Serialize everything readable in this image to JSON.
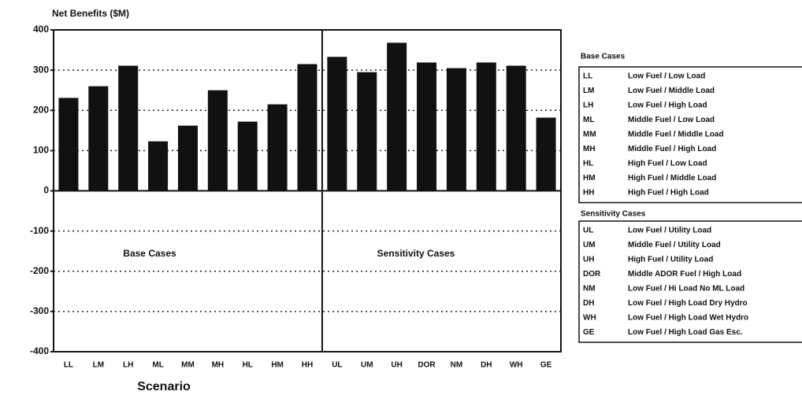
{
  "chart_data": {
    "type": "bar",
    "title": "Net Benefits ($M)",
    "x_label": "Scenario",
    "categories": [
      "LL",
      "LM",
      "LH",
      "ML",
      "MM",
      "MH",
      "HL",
      "HM",
      "HH",
      "UL",
      "UM",
      "UH",
      "DOR",
      "NM",
      "DH",
      "WH",
      "GE"
    ],
    "values": [
      231,
      260,
      311,
      123,
      162,
      250,
      172,
      215,
      315,
      333,
      295,
      368,
      319,
      305,
      319,
      311,
      182
    ],
    "color": "#111111",
    "ylim": [
      -400,
      400
    ],
    "yticks": [
      -400,
      -300,
      -200,
      -100,
      0,
      100,
      200,
      300,
      400
    ],
    "grid": true,
    "annotations": [
      "Base Cases",
      "Sensitivity Cases"
    ],
    "legend": [
      {
        "title": "Base Cases",
        "entries": [
          {
            "code": "LL",
            "label": "Low Fuel / Low Load"
          },
          {
            "code": "LM",
            "label": "Low Fuel / Middle Load"
          },
          {
            "code": "LH",
            "label": "Low Fuel / High Load"
          },
          {
            "code": "ML",
            "label": "Middle Fuel / Low Load"
          },
          {
            "code": "MM",
            "label": "Middle Fuel / Middle Load"
          },
          {
            "code": "MH",
            "label": "Middle Fuel / High Load"
          },
          {
            "code": "HL",
            "label": "High Fuel / Low Load"
          },
          {
            "code": "HM",
            "label": "High Fuel / Middle Load"
          },
          {
            "code": "HH",
            "label": "High Fuel / High Load"
          }
        ]
      },
      {
        "title": "Sensitivity Cases",
        "entries": [
          {
            "code": "UL",
            "label": "Low Fuel / Utility Load"
          },
          {
            "code": "UM",
            "label": "Middle Fuel / Utility Load"
          },
          {
            "code": "UH",
            "label": "High Fuel / Utility Load"
          },
          {
            "code": "DOR",
            "label": "Middle ADOR Fuel / High Load"
          },
          {
            "code": "NM",
            "label": "Low Fuel / Hi Load No ML Load"
          },
          {
            "code": "DH",
            "label": "Low Fuel / High Load Dry Hydro"
          },
          {
            "code": "WH",
            "label": "Low Fuel / High Load Wet Hydro"
          },
          {
            "code": "GE",
            "label": "Low Fuel / High Load Gas Esc."
          }
        ]
      }
    ]
  }
}
